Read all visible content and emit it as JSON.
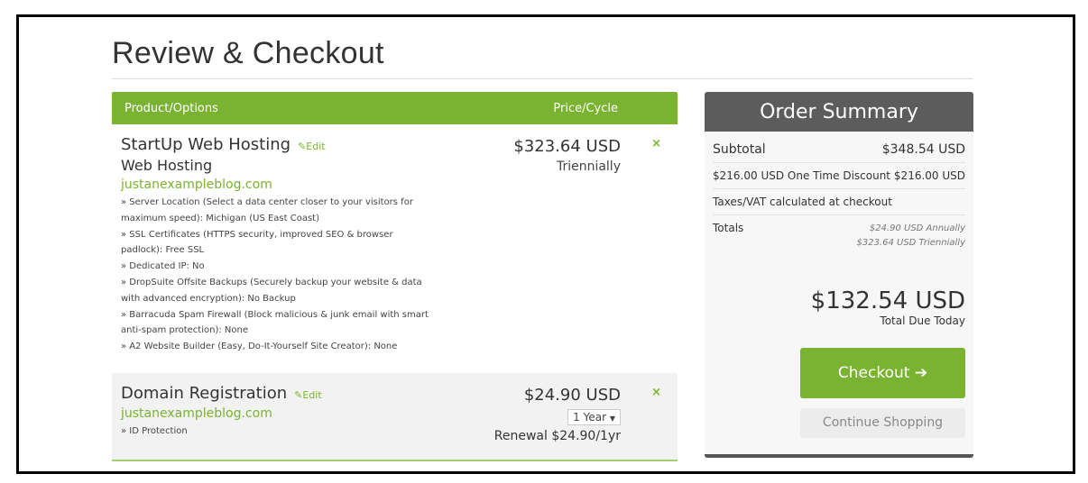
{
  "page": {
    "title": "Review & Checkout"
  },
  "table": {
    "col_product": "Product/Options",
    "col_price": "Price/Cycle"
  },
  "items": [
    {
      "name": "StartUp Web Hosting",
      "edit": "Edit",
      "group": "Web Hosting",
      "domain": "justanexampleblog.com",
      "price": "$323.64 USD",
      "cycle": "Triennially",
      "remove": "×",
      "options": [
        "» Server Location (Select a data center closer to your visitors for maximum speed): Michigan (US East Coast)",
        "» SSL Certificates (HTTPS security, improved SEO & browser padlock): Free SSL",
        "» Dedicated IP: No",
        "» DropSuite Offsite Backups (Securely backup your website & data with advanced encryption): No Backup",
        "» Barracuda Spam Firewall (Block malicious & junk email with smart anti-spam protection): None",
        "» A2 Website Builder (Easy, Do-It-Yourself Site Creator): None"
      ]
    },
    {
      "name": "Domain Registration",
      "edit": "Edit",
      "domain": "justanexampleblog.com",
      "options": [
        "» ID Protection"
      ],
      "price": "$24.90 USD",
      "period": "1 Year",
      "renewal": "Renewal $24.90/1yr",
      "remove": "×"
    }
  ],
  "summary": {
    "title": "Order Summary",
    "subtotal_label": "Subtotal",
    "subtotal": "$348.54 USD",
    "discount_label": "$216.00 USD One Time Discount",
    "discount": "$216.00 USD",
    "taxes": "Taxes/VAT calculated at checkout",
    "totals_label": "Totals",
    "totals": [
      "$24.90 USD Annually",
      "$323.64 USD Triennially"
    ],
    "due": "$132.54 USD",
    "due_label": "Total Due Today",
    "checkout": "Checkout",
    "continue": "Continue Shopping"
  },
  "colors": {
    "accent": "#7ab331",
    "summary_header": "#5c5c5c"
  }
}
